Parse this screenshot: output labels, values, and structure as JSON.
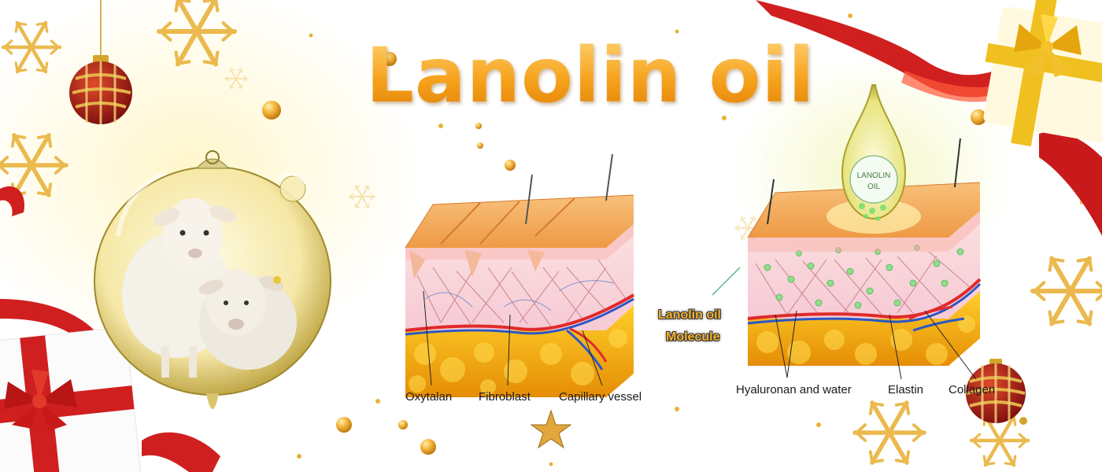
{
  "banner": {
    "title": "Lanolin oil"
  },
  "diagram_left": {
    "labels": {
      "oxytalan": "Oxytalan",
      "fibroblast": "Fibroblast",
      "capillary": "Capillary vessel"
    }
  },
  "diagram_right": {
    "bottle_text_line1": "LANOLIN",
    "bottle_text_line2": "OIL",
    "molecule_label_line1": "Lanolin oil",
    "molecule_label_line2": "Molecule",
    "labels": {
      "hyaluronan": "Hyaluronan and water",
      "elastin": "Elastin",
      "collagen": "Collagen"
    }
  },
  "colors": {
    "title_gold": "#f0a020",
    "skin_top": "#f6b26b",
    "skin_dermis": "#f9d6d6",
    "fat_layer": "#f4a70c",
    "artery": "#e02a2a",
    "vein": "#2a57c9",
    "ribbon_red": "#d01f1f",
    "gold": "#e9b23a"
  },
  "icons": [
    "snowflake-icon",
    "ornament-icon",
    "gift-icon",
    "star-icon",
    "oil-drop-icon"
  ]
}
